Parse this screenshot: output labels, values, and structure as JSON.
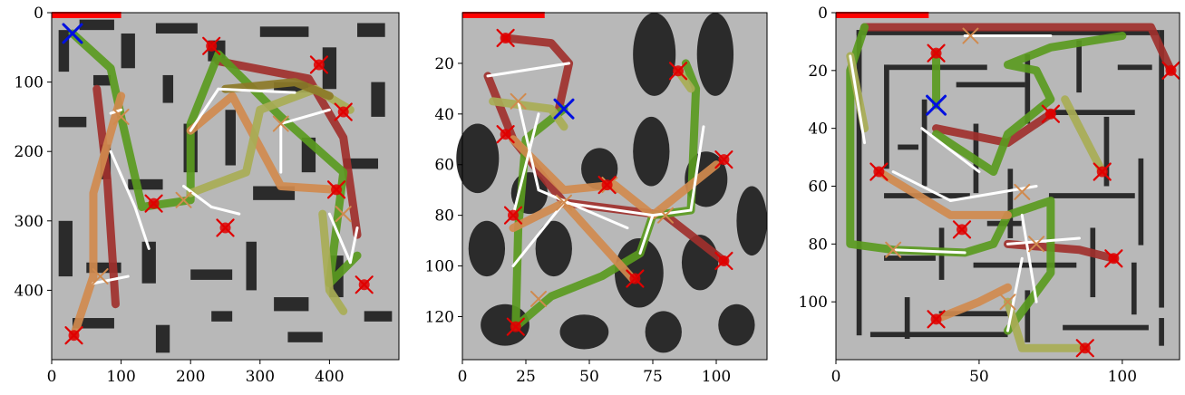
{
  "colors": {
    "background": "#b8b8b8",
    "obstacle": "#2b2b2b",
    "dark_red": "#a0302c",
    "red": "#e00000",
    "orange": "#d08a4e",
    "olive": "#a8ad55",
    "green": "#5a9a20",
    "dark_olive": "#8c7a28",
    "white": "#ffffff",
    "blue": "#0010e0",
    "progress_bar": "#ff0000"
  },
  "chart_data": [
    {
      "type": "path-planning-map",
      "xlim": [
        0,
        500
      ],
      "ylim": [
        500,
        0
      ],
      "xticks": [
        "0",
        "100",
        "200",
        "300",
        "400"
      ],
      "yticks": [
        "0",
        "100",
        "200",
        "300",
        "400"
      ],
      "xtick_values": [
        0,
        100,
        200,
        300,
        400
      ],
      "ytick_values": [
        0,
        100,
        200,
        300,
        400
      ],
      "progress": 0.2,
      "start": [
        30,
        30
      ],
      "goals": [
        [
          230,
          48
        ],
        [
          385,
          75
        ],
        [
          420,
          143
        ],
        [
          410,
          255
        ],
        [
          147,
          275
        ],
        [
          250,
          310
        ],
        [
          450,
          392
        ],
        [
          32,
          465
        ]
      ],
      "routes": [
        {
          "color": "dark_red",
          "points": [
            [
              65,
              110
            ],
            [
              80,
              240
            ],
            [
              92,
              420
            ]
          ]
        },
        {
          "color": "dark_red",
          "points": [
            [
              240,
              70
            ],
            [
              370,
              95
            ],
            [
              420,
              180
            ],
            [
              440,
              320
            ]
          ]
        },
        {
          "color": "green",
          "points": [
            [
              30,
              30
            ],
            [
              85,
              80
            ],
            [
              100,
              150
            ],
            [
              130,
              280
            ],
            [
              200,
              270
            ],
            [
              200,
              160
            ],
            [
              240,
              60
            ]
          ]
        },
        {
          "color": "green",
          "points": [
            [
              240,
              60
            ],
            [
              330,
              150
            ],
            [
              420,
              230
            ],
            [
              400,
              390
            ],
            [
              440,
              350
            ]
          ]
        },
        {
          "color": "orange",
          "points": [
            [
              100,
              120
            ],
            [
              60,
              260
            ],
            [
              60,
              380
            ],
            [
              32,
              465
            ]
          ]
        },
        {
          "color": "orange",
          "points": [
            [
              200,
              170
            ],
            [
              260,
              120
            ],
            [
              330,
              250
            ],
            [
              410,
              255
            ]
          ]
        },
        {
          "color": "olive",
          "points": [
            [
              200,
              260
            ],
            [
              280,
              230
            ],
            [
              300,
              140
            ],
            [
              380,
              110
            ],
            [
              430,
              140
            ]
          ]
        },
        {
          "color": "olive",
          "points": [
            [
              390,
              290
            ],
            [
              400,
              400
            ],
            [
              420,
              430
            ]
          ]
        },
        {
          "color": "dark_olive",
          "points": [
            [
              250,
              110
            ],
            [
              350,
              100
            ],
            [
              400,
              120
            ]
          ]
        }
      ],
      "white_edges": [
        [
          [
            85,
            145
          ],
          [
            100,
            140
          ]
        ],
        [
          [
            85,
            200
          ],
          [
            120,
            280
          ]
        ],
        [
          [
            120,
            280
          ],
          [
            140,
            340
          ]
        ],
        [
          [
            190,
            250
          ],
          [
            230,
            280
          ]
        ],
        [
          [
            230,
            280
          ],
          [
            270,
            290
          ]
        ],
        [
          [
            200,
            170
          ],
          [
            240,
            110
          ]
        ],
        [
          [
            240,
            110
          ],
          [
            350,
            115
          ]
        ],
        [
          [
            330,
            160
          ],
          [
            400,
            140
          ]
        ],
        [
          [
            330,
            160
          ],
          [
            330,
            230
          ]
        ],
        [
          [
            400,
            290
          ],
          [
            430,
            360
          ]
        ],
        [
          [
            430,
            360
          ],
          [
            440,
            310
          ]
        ],
        [
          [
            60,
            390
          ],
          [
            110,
            380
          ]
        ]
      ],
      "x_markers": [
        [
          100,
          150
        ],
        [
          70,
          380
        ],
        [
          330,
          160
        ],
        [
          420,
          290
        ],
        [
          190,
          270
        ]
      ]
    },
    {
      "type": "path-planning-map",
      "xlim": [
        0,
        120
      ],
      "ylim": [
        137,
        0
      ],
      "xticks": [
        "0",
        "25",
        "50",
        "75",
        "100"
      ],
      "yticks": [
        "20",
        "40",
        "60",
        "80",
        "100",
        "120"
      ],
      "xtick_values": [
        0,
        25,
        50,
        75,
        100
      ],
      "ytick_values": [
        20,
        40,
        60,
        80,
        100,
        120
      ],
      "progress": 0.27,
      "start": [
        40,
        38
      ],
      "goals": [
        [
          17,
          10
        ],
        [
          85,
          23
        ],
        [
          17,
          48
        ],
        [
          103,
          58
        ],
        [
          57,
          68
        ],
        [
          20,
          80
        ],
        [
          68,
          105
        ],
        [
          103,
          98
        ],
        [
          21,
          124
        ]
      ],
      "routes": [
        {
          "color": "dark_red",
          "points": [
            [
              17,
              10
            ],
            [
              35,
              12
            ],
            [
              42,
              20
            ],
            [
              38,
              38
            ]
          ]
        },
        {
          "color": "dark_red",
          "points": [
            [
              10,
              25
            ],
            [
              20,
              50
            ],
            [
              40,
              75
            ],
            [
              80,
              80
            ],
            [
              103,
              98
            ]
          ]
        },
        {
          "color": "green",
          "points": [
            [
              40,
              38
            ],
            [
              25,
              50
            ],
            [
              22,
              85
            ],
            [
              21,
              124
            ],
            [
              35,
              112
            ],
            [
              55,
              104
            ],
            [
              70,
              95
            ],
            [
              75,
              80
            ],
            [
              90,
              78
            ],
            [
              92,
              30
            ],
            [
              88,
              20
            ]
          ]
        },
        {
          "color": "orange",
          "points": [
            [
              20,
              50
            ],
            [
              40,
              70
            ],
            [
              60,
              68
            ],
            [
              75,
              80
            ],
            [
              100,
              60
            ]
          ]
        },
        {
          "color": "orange",
          "points": [
            [
              20,
              85
            ],
            [
              40,
              75
            ],
            [
              67,
              105
            ]
          ]
        },
        {
          "color": "olive",
          "points": [
            [
              12,
              35
            ],
            [
              35,
              38
            ],
            [
              40,
              45
            ]
          ]
        },
        {
          "color": "olive",
          "points": [
            [
              85,
              23
            ],
            [
              90,
              30
            ]
          ]
        }
      ],
      "white_edges": [
        [
          [
            10,
            25
          ],
          [
            42,
            20
          ]
        ],
        [
          [
            22,
            35
          ],
          [
            30,
            70
          ]
        ],
        [
          [
            30,
            70
          ],
          [
            65,
            85
          ]
        ],
        [
          [
            20,
            80
          ],
          [
            30,
            40
          ]
        ],
        [
          [
            40,
            75
          ],
          [
            75,
            80
          ]
        ],
        [
          [
            75,
            80
          ],
          [
            90,
            78
          ]
        ],
        [
          [
            90,
            78
          ],
          [
            95,
            45
          ]
        ],
        [
          [
            70,
            95
          ],
          [
            75,
            80
          ]
        ],
        [
          [
            20,
            100
          ],
          [
            40,
            75
          ]
        ]
      ],
      "x_markers": [
        [
          22,
          35
        ],
        [
          58,
          68
        ],
        [
          40,
          75
        ],
        [
          80,
          80
        ],
        [
          30,
          113
        ]
      ]
    },
    {
      "type": "path-planning-map",
      "xlim": [
        0,
        120
      ],
      "ylim": [
        120,
        0
      ],
      "xticks": [
        "0",
        "50",
        "100"
      ],
      "yticks": [
        "0",
        "20",
        "40",
        "60",
        "80",
        "100"
      ],
      "xtick_values": [
        0,
        50,
        100
      ],
      "ytick_values": [
        0,
        20,
        40,
        60,
        80,
        100
      ],
      "progress": 0.27,
      "start": [
        35,
        32
      ],
      "goals": [
        [
          35,
          14
        ],
        [
          117,
          20
        ],
        [
          75,
          35
        ],
        [
          15,
          55
        ],
        [
          93,
          55
        ],
        [
          44,
          75
        ],
        [
          97,
          85
        ],
        [
          35,
          106
        ],
        [
          87,
          116
        ]
      ],
      "routes": [
        {
          "color": "dark_red",
          "points": [
            [
              10,
              5
            ],
            [
              110,
              5
            ],
            [
              117,
              20
            ]
          ]
        },
        {
          "color": "dark_red",
          "points": [
            [
              35,
              40
            ],
            [
              60,
              45
            ],
            [
              75,
              35
            ]
          ]
        },
        {
          "color": "dark_red",
          "points": [
            [
              60,
              80
            ],
            [
              85,
              82
            ],
            [
              97,
              85
            ]
          ]
        },
        {
          "color": "green",
          "points": [
            [
              35,
              32
            ],
            [
              35,
              14
            ]
          ]
        },
        {
          "color": "green",
          "points": [
            [
              10,
              5
            ],
            [
              5,
              20
            ],
            [
              5,
              80
            ],
            [
              20,
              82
            ],
            [
              45,
              83
            ],
            [
              55,
              80
            ],
            [
              60,
              70
            ],
            [
              75,
              65
            ],
            [
              75,
              90
            ],
            [
              60,
              110
            ]
          ]
        },
        {
          "color": "green",
          "points": [
            [
              35,
              42
            ],
            [
              55,
              55
            ],
            [
              60,
              42
            ],
            [
              75,
              30
            ],
            [
              70,
              20
            ],
            [
              60,
              18
            ],
            [
              75,
              12
            ],
            [
              100,
              8
            ]
          ]
        },
        {
          "color": "orange",
          "points": [
            [
              15,
              55
            ],
            [
              40,
              70
            ],
            [
              60,
              70
            ]
          ]
        },
        {
          "color": "orange",
          "points": [
            [
              35,
              106
            ],
            [
              50,
              100
            ],
            [
              60,
              95
            ]
          ]
        },
        {
          "color": "olive",
          "points": [
            [
              5,
              15
            ],
            [
              10,
              40
            ]
          ]
        },
        {
          "color": "olive",
          "points": [
            [
              80,
              30
            ],
            [
              93,
              55
            ]
          ]
        },
        {
          "color": "olive",
          "points": [
            [
              60,
              100
            ],
            [
              65,
              116
            ],
            [
              87,
              116
            ]
          ]
        }
      ],
      "white_edges": [
        [
          [
            5,
            15
          ],
          [
            10,
            45
          ]
        ],
        [
          [
            30,
            40
          ],
          [
            50,
            55
          ]
        ],
        [
          [
            20,
            55
          ],
          [
            40,
            65
          ]
        ],
        [
          [
            40,
            65
          ],
          [
            70,
            60
          ]
        ],
        [
          [
            20,
            82
          ],
          [
            45,
            83
          ]
        ],
        [
          [
            65,
            70
          ],
          [
            70,
            100
          ]
        ],
        [
          [
            60,
            80
          ],
          [
            85,
            78
          ]
        ],
        [
          [
            60,
            110
          ],
          [
            65,
            85
          ]
        ],
        [
          [
            45,
            8
          ],
          [
            75,
            8
          ]
        ]
      ],
      "x_markers": [
        [
          65,
          62
        ],
        [
          70,
          80
        ],
        [
          20,
          82
        ],
        [
          60,
          100
        ],
        [
          47,
          8
        ]
      ]
    }
  ]
}
